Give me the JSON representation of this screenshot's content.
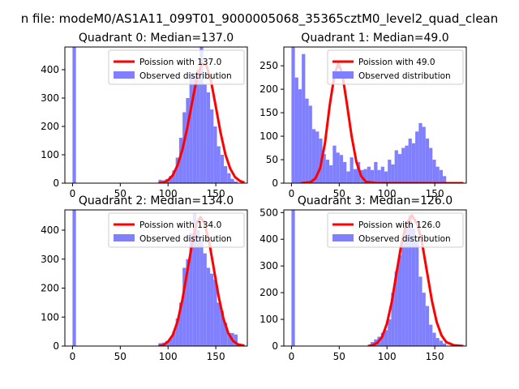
{
  "figure_title": "n file: modeM0/AS1A11_099T01_9000005068_35365cztM0_level2_quad_clean",
  "colors": {
    "poisson": "#ff0000",
    "observed": "#8080ff",
    "axis": "#000000",
    "background": "#ffffff"
  },
  "chart_data": [
    {
      "type": "bar",
      "title": "Quadrant 0: Median=137.0",
      "xlim": [
        -8,
        183
      ],
      "ylim": [
        0,
        480
      ],
      "xticks": [
        0,
        50,
        100,
        150
      ],
      "yticks": [
        0,
        100,
        200,
        300,
        400
      ],
      "legend": {
        "position": "top-right",
        "entries": [
          "Poission with 137.0",
          "Observed distribution"
        ]
      },
      "poisson_mean": 137.0,
      "bin_width": 3.6,
      "histogram": {
        "bins": [
          0,
          90,
          93.6,
          97.2,
          100.8,
          104.4,
          108,
          111.6,
          115.2,
          118.8,
          122.4,
          126,
          129.6,
          133.2,
          136.8,
          140.4,
          144,
          147.6,
          151.2,
          154.8,
          158.4,
          162,
          165.6,
          169.2
        ],
        "values": [
          480,
          12,
          10,
          15,
          25,
          45,
          90,
          160,
          250,
          300,
          390,
          380,
          400,
          480,
          350,
          320,
          260,
          200,
          130,
          100,
          60,
          35,
          15,
          6
        ]
      },
      "poisson_curve": {
        "x": [
          90,
          95,
          100,
          105,
          110,
          115,
          120,
          125,
          130,
          135,
          140,
          145,
          150,
          155,
          160,
          165,
          170,
          175,
          180
        ],
        "y": [
          0,
          2,
          10,
          28,
          63,
          118,
          193,
          282,
          368,
          420,
          418,
          360,
          270,
          178,
          102,
          52,
          22,
          8,
          2
        ]
      }
    },
    {
      "type": "bar",
      "title": "Quadrant 1: Median=49.0",
      "xlim": [
        -8,
        183
      ],
      "ylim": [
        0,
        290
      ],
      "xticks": [
        0,
        50,
        100,
        150
      ],
      "yticks": [
        0,
        50,
        100,
        150,
        200,
        250
      ],
      "legend": {
        "position": "top-right",
        "entries": [
          "Poission with 49.0",
          "Observed distribution"
        ]
      },
      "poisson_mean": 49.0,
      "bin_width": 3.6,
      "histogram": {
        "bins": [
          0,
          3.6,
          7.2,
          10.8,
          14.4,
          18,
          21.6,
          25.2,
          28.8,
          32.4,
          36,
          39.6,
          43.2,
          46.8,
          50.4,
          54,
          57.6,
          61.2,
          64.8,
          68.4,
          72,
          75.6,
          79.2,
          82.8,
          86.4,
          90,
          93.6,
          97.2,
          100.8,
          104.4,
          108,
          111.6,
          115.2,
          118.8,
          122.4,
          126,
          129.6,
          133.2,
          136.8,
          140.4,
          144,
          147.6,
          151.2,
          154.8,
          158.4
        ],
        "values": [
          290,
          225,
          200,
          275,
          180,
          165,
          115,
          110,
          95,
          62,
          50,
          38,
          80,
          65,
          60,
          45,
          25,
          55,
          30,
          45,
          28,
          30,
          35,
          28,
          45,
          28,
          35,
          25,
          50,
          40,
          70,
          62,
          75,
          80,
          95,
          85,
          110,
          128,
          120,
          95,
          75,
          50,
          35,
          28,
          15
        ]
      },
      "poisson_curve": {
        "x": [
          10,
          20,
          25,
          30,
          35,
          40,
          45,
          49,
          53,
          58,
          63,
          68,
          73,
          78,
          90,
          180
        ],
        "y": [
          0,
          2,
          10,
          32,
          85,
          165,
          230,
          255,
          235,
          170,
          100,
          45,
          15,
          3,
          0,
          0
        ]
      }
    },
    {
      "type": "bar",
      "title": "Quadrant 2: Median=134.0",
      "xlim": [
        -8,
        183
      ],
      "ylim": [
        0,
        470
      ],
      "xticks": [
        0,
        50,
        100,
        150
      ],
      "yticks": [
        0,
        100,
        200,
        300,
        400
      ],
      "legend": {
        "position": "top-right",
        "entries": [
          "Poission with 134.0",
          "Observed distribution"
        ]
      },
      "poisson_mean": 134.0,
      "bin_width": 3.6,
      "histogram": {
        "bins": [
          0,
          90,
          93.6,
          97.2,
          100.8,
          104.4,
          108,
          111.6,
          115.2,
          118.8,
          122.4,
          126,
          129.6,
          133.2,
          136.8,
          140.4,
          144,
          147.6,
          151.2,
          154.8,
          158.4,
          162,
          165.6,
          169.2
        ],
        "values": [
          470,
          10,
          12,
          18,
          25,
          50,
          95,
          150,
          270,
          300,
          390,
          460,
          400,
          370,
          320,
          270,
          250,
          230,
          150,
          120,
          80,
          45,
          45,
          40
        ]
      },
      "poisson_curve": {
        "x": [
          90,
          95,
          100,
          105,
          110,
          115,
          120,
          125,
          130,
          134,
          138,
          143,
          148,
          153,
          158,
          163,
          168,
          173,
          180
        ],
        "y": [
          0,
          3,
          15,
          38,
          85,
          160,
          255,
          350,
          425,
          445,
          425,
          360,
          265,
          170,
          95,
          45,
          18,
          6,
          1
        ]
      }
    },
    {
      "type": "bar",
      "title": "Quadrant 3: Median=126.0",
      "xlim": [
        -8,
        183
      ],
      "ylim": [
        0,
        510
      ],
      "xticks": [
        0,
        50,
        100,
        150
      ],
      "yticks": [
        0,
        100,
        200,
        300,
        400,
        500
      ],
      "legend": {
        "position": "top-right",
        "entries": [
          "Poission with 126.0",
          "Observed distribution"
        ]
      },
      "poisson_mean": 126.0,
      "bin_width": 3.6,
      "histogram": {
        "bins": [
          0,
          82.8,
          86.4,
          90,
          93.6,
          97.2,
          100.8,
          104.4,
          108,
          111.6,
          115.2,
          118.8,
          122.4,
          126,
          129.6,
          133.2,
          136.8,
          140.4,
          144,
          147.6,
          151.2,
          154.8,
          158.4
        ],
        "values": [
          510,
          15,
          25,
          35,
          50,
          60,
          100,
          200,
          280,
          340,
          400,
          460,
          490,
          440,
          400,
          260,
          200,
          150,
          80,
          50,
          30,
          20,
          10
        ]
      },
      "poisson_curve": {
        "x": [
          80,
          85,
          90,
          95,
          100,
          105,
          110,
          115,
          120,
          126,
          132,
          137,
          142,
          147,
          152,
          157,
          162,
          170,
          180
        ],
        "y": [
          0,
          3,
          12,
          35,
          85,
          165,
          275,
          380,
          455,
          490,
          455,
          380,
          275,
          170,
          90,
          40,
          15,
          3,
          0
        ]
      }
    }
  ]
}
